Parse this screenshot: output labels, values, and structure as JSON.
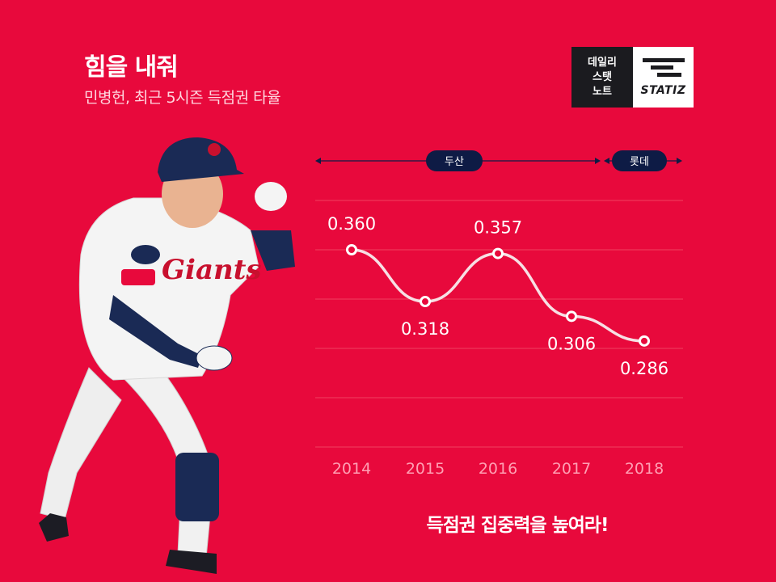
{
  "header": {
    "title": "힘을 내줘",
    "subtitle": "민병헌, 최근 5시즌 득점권 타율"
  },
  "logo": {
    "lines": [
      "데일리",
      "스탯",
      "노트"
    ],
    "brand": "STATIZ"
  },
  "team_bar": [
    {
      "label": "두산"
    },
    {
      "label": "롯데"
    }
  ],
  "chart_data": {
    "type": "line",
    "title": "",
    "xlabel": "",
    "ylabel": "",
    "x": [
      "2014",
      "2015",
      "2016",
      "2017",
      "2018"
    ],
    "series": [
      {
        "values": [
          0.36,
          0.318,
          0.357,
          0.306,
          0.286
        ]
      }
    ],
    "data_labels": [
      "0.360",
      "0.318",
      "0.357",
      "0.306",
      "0.286"
    ],
    "ylim": [
      0.2,
      0.4
    ],
    "grid": true,
    "line_color": "#f7dfe4"
  },
  "footer": {
    "text": "득점권 집중력을 높여라!"
  },
  "colors": {
    "background": "#e8093c",
    "navy": "#0e1b45",
    "grid": "#f0415f"
  },
  "image": {
    "icon": "baseball-player-photo"
  }
}
